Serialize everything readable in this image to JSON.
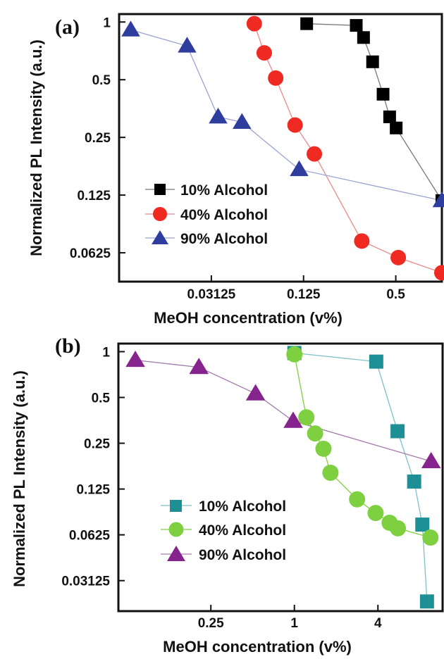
{
  "chart_data": [
    {
      "type": "scatter",
      "panel_label": "(a)",
      "xlabel": "MeOH concentration (v%)",
      "ylabel": "Normalized PL Intensity (a.u.)",
      "xscale": "log2",
      "yscale": "log2",
      "xlim": [
        0.00781,
        1.0
      ],
      "ylim": [
        0.0442,
        1.1
      ],
      "xticks": [
        0.03125,
        0.125,
        0.5
      ],
      "xtick_labels": [
        "0.03125",
        "0.125",
        "0.5"
      ],
      "yticks": [
        0.0625,
        0.125,
        0.25,
        0.5,
        1
      ],
      "ytick_labels": [
        "0.0625",
        "0.125",
        "0.25",
        "0.5",
        "1"
      ],
      "legend_position": "lower-left",
      "series": [
        {
          "name": "10% Alcohol",
          "marker": "square",
          "color": "#000000",
          "line_color": "#777777",
          "x": [
            0.131,
            0.276,
            0.308,
            0.353,
            0.413,
            0.456,
            0.503,
            1.0
          ],
          "y": [
            0.98,
            0.96,
            0.83,
            0.62,
            0.42,
            0.32,
            0.28,
            0.117
          ]
        },
        {
          "name": "40% Alcohol",
          "marker": "circle",
          "color": "#ee2a22",
          "line_color": "#e88a8a",
          "x": [
            0.0596,
            0.0692,
            0.0822,
            0.11,
            0.147,
            0.3,
            0.519,
            1.0
          ],
          "y": [
            0.98,
            0.69,
            0.51,
            0.29,
            0.205,
            0.072,
            0.059,
            0.0492
          ]
        },
        {
          "name": "90% Alcohol",
          "marker": "triangle",
          "color": "#2e3d9e",
          "line_color": "#9aa3d2",
          "x": [
            0.0093,
            0.0217,
            0.0346,
            0.0495,
            0.117,
            1.0
          ],
          "y": [
            0.91,
            0.75,
            0.32,
            0.3,
            0.17,
            0.117
          ]
        }
      ]
    },
    {
      "type": "scatter",
      "panel_label": "(b)",
      "xlabel": "MeOH concentration (v%)",
      "ylabel": "Normalized PL Intensity (a.u.)",
      "xscale": "log2",
      "yscale": "log2",
      "xlim": [
        0.0539,
        11.7
      ],
      "ylim": [
        0.0197,
        1.13
      ],
      "xticks": [
        0.25,
        1,
        4
      ],
      "xtick_labels": [
        "0.25",
        "1",
        "4"
      ],
      "yticks": [
        0.03125,
        0.0625,
        0.125,
        0.25,
        0.5,
        1
      ],
      "ytick_labels": [
        "0.03125",
        "0.0625",
        "0.125",
        "0.25",
        "0.5",
        "1"
      ],
      "legend_position": "lower-left",
      "series": [
        {
          "name": "10% Alcohol",
          "marker": "square",
          "color": "#1f8f96",
          "line_color": "#7cc2c7",
          "x": [
            1.0,
            3.89,
            5.54,
            7.3,
            8.36,
            9.03
          ],
          "y": [
            0.98,
            0.86,
            0.3,
            0.14,
            0.073,
            0.0228
          ]
        },
        {
          "name": "40% Alcohol",
          "marker": "circle",
          "color": "#7ed040",
          "line_color": "#7ed040",
          "x": [
            1.0,
            1.22,
            1.41,
            1.62,
            1.82,
            2.83,
            3.85,
            4.86,
            5.57,
            9.57
          ],
          "y": [
            0.96,
            0.37,
            0.29,
            0.23,
            0.16,
            0.107,
            0.087,
            0.075,
            0.069,
            0.06
          ]
        },
        {
          "name": "90% Alcohol",
          "marker": "triangle",
          "color": "#85248c",
          "line_color": "#a37aac",
          "x": [
            0.0714,
            0.205,
            0.525,
            0.98,
            9.67
          ],
          "y": [
            0.88,
            0.79,
            0.53,
            0.35,
            0.19
          ]
        }
      ]
    }
  ]
}
